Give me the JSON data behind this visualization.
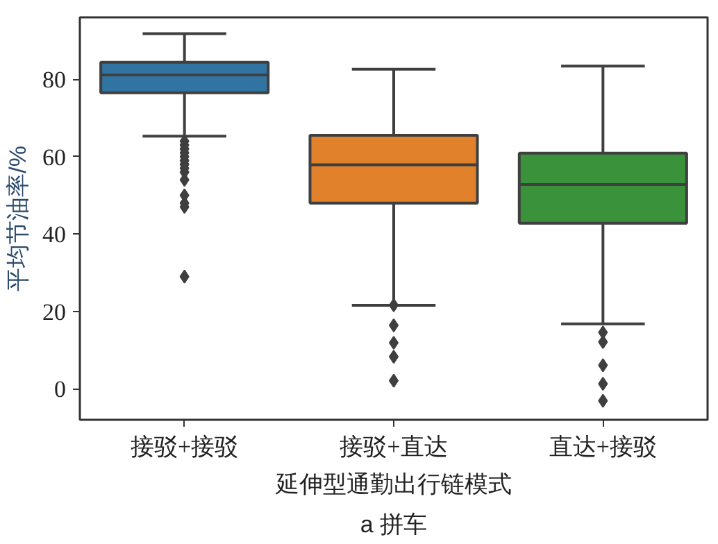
{
  "chart_data": {
    "type": "box",
    "categories": [
      "接驳+接驳",
      "接驳+直达",
      "直达+接驳"
    ],
    "xlabel": "延伸型通勤出行链模式",
    "ylabel": "平均节油率/%",
    "colors": [
      "#3274a1",
      "#e1812c",
      "#3a923a"
    ],
    "boxes": [
      {
        "low": 65.3,
        "q1": 76.5,
        "median": 81.1,
        "q3": 84.4,
        "high": 91.8,
        "outliers": [
          64,
          63,
          62,
          61,
          60,
          59,
          58,
          57,
          56,
          54,
          50,
          48,
          47,
          29
        ]
      },
      {
        "low": 21.6,
        "q1": 48,
        "median": 57.9,
        "q3": 65.5,
        "high": 82.6,
        "outliers": [
          21.6,
          16.4,
          11.9,
          8.3,
          2.1
        ]
      },
      {
        "low": 16.8,
        "q1": 42.8,
        "median": 52.8,
        "q3": 60.9,
        "high": 83.4,
        "outliers": [
          14.6,
          12.1,
          6.1,
          1.3,
          -3.1
        ]
      }
    ],
    "ylim": [
      -8,
      96
    ],
    "yticks": [
      0,
      20,
      40,
      60,
      80
    ],
    "grid": false,
    "marker": "diamond",
    "annotations": [
      "a 拼车"
    ]
  }
}
